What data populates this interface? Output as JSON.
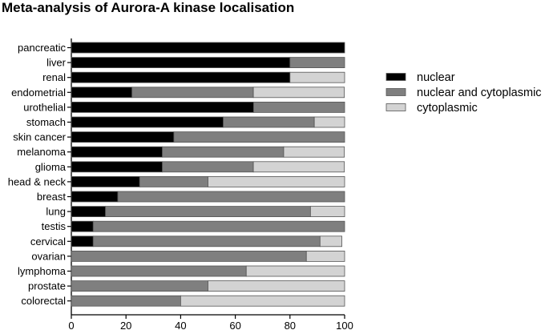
{
  "chart_data": {
    "type": "bar",
    "orientation": "horizontal",
    "stacked": true,
    "title": "Meta-analysis of Aurora-A kinase localisation",
    "xlabel": "",
    "ylabel": "",
    "xlim": [
      0,
      100
    ],
    "xticks": [
      0,
      20,
      40,
      60,
      80,
      100
    ],
    "grid": false,
    "legend_position": "right",
    "categories": [
      "pancreatic",
      "liver",
      "renal",
      "endometrial",
      "urothelial",
      "stomach",
      "skin cancer",
      "melanoma",
      "glioma",
      "head & neck",
      "breast",
      "lung",
      "testis",
      "cervical",
      "ovarian",
      "lymphoma",
      "prostate",
      "colorectal"
    ],
    "series": [
      {
        "name": "nuclear",
        "color": "#000000",
        "values": [
          100,
          80,
          80,
          22.2,
          66.7,
          55.6,
          37.5,
          33.3,
          33.3,
          25,
          17,
          12.5,
          8,
          8,
          0,
          0,
          0,
          0
        ]
      },
      {
        "name": "nuclear and cytoplasmic",
        "color": "#7f7f7f",
        "values": [
          0,
          20,
          0,
          44.4,
          33.3,
          33.3,
          62.5,
          44.4,
          33.3,
          25,
          83,
          75,
          92,
          83,
          86,
          64,
          50,
          40
        ]
      },
      {
        "name": "cytoplasmic",
        "color": "#d3d3d3",
        "values": [
          0,
          0,
          20,
          33.3,
          0,
          11.1,
          0,
          22.2,
          33.3,
          50,
          0,
          12.5,
          0,
          8,
          14,
          36,
          50,
          60
        ]
      }
    ]
  }
}
